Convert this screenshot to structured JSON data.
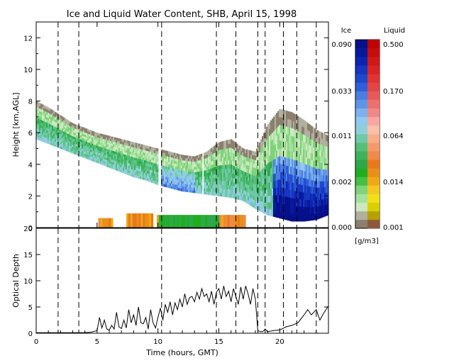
{
  "title": "Ice and Liquid Water Content, SHB, April 15, 1998",
  "colorbar": {
    "ice_label": "Ice",
    "liquid_label": "Liquid",
    "units": "[g/m3]",
    "ice_ticks": [
      "0.090",
      "0.033",
      "0.011",
      "0.002",
      "0.000"
    ],
    "liquid_ticks": [
      "0.500",
      "0.170",
      "0.064",
      "0.014",
      "0.001"
    ],
    "ice_colors": [
      "#8c7f6e",
      "#b0b0a0",
      "#cde8c0",
      "#a6e0a0",
      "#7fd37a",
      "#44c044",
      "#1fae1f",
      "#2ea84a",
      "#3cb35a",
      "#56bf7a",
      "#6fc9a8",
      "#8fd0d8",
      "#93c8ef",
      "#7eb2ef",
      "#5f95e8",
      "#4a7ee0",
      "#2f5ed8",
      "#1f48cc",
      "#1636c0",
      "#0c24b0",
      "#0818a0",
      "#06108a"
    ],
    "liquid_colors": [
      "#8c5a3a",
      "#b8a000",
      "#d8d000",
      "#f0e018",
      "#f4c820",
      "#f0a818",
      "#e89018",
      "#e8781c",
      "#f08a4a",
      "#f49a6a",
      "#f8ae8a",
      "#fac0a8",
      "#f8a8a0",
      "#f08888",
      "#ec7070",
      "#e85a5a",
      "#e44444",
      "#e03434",
      "#d82424",
      "#d01818",
      "#c80c0c",
      "#c00000"
    ]
  },
  "chart_data": [
    {
      "type": "heatmap",
      "title": "Ice and Liquid Water Content, SHB, April 15, 1998",
      "xlabel": "",
      "ylabel": "Height [km,AGL]",
      "xlim": [
        0,
        24
      ],
      "ylim": [
        0,
        13
      ],
      "yticks": [
        "0",
        "2",
        "4",
        "6",
        "8",
        "10",
        "12"
      ],
      "cloud_base_km": {
        "x": [
          0,
          1,
          2,
          3,
          4,
          5,
          6,
          7,
          8,
          9,
          10,
          11,
          12,
          13,
          14,
          15,
          16,
          17,
          18,
          19,
          20,
          21,
          22,
          23,
          24
        ],
        "y": [
          5.6,
          5.3,
          5.0,
          4.7,
          4.4,
          4.1,
          3.8,
          3.5,
          3.2,
          3.0,
          2.7,
          2.5,
          2.3,
          2.2,
          2.1,
          2.0,
          1.9,
          1.7,
          1.2,
          0.8,
          0.6,
          0.4,
          0.4,
          0.5,
          0.8
        ]
      },
      "cloud_top_km": {
        "x": [
          0,
          1,
          2,
          3,
          4,
          5,
          6,
          7,
          8,
          9,
          10,
          11,
          12,
          13,
          14,
          15,
          16,
          17,
          18,
          19,
          20,
          21,
          22,
          23,
          24
        ],
        "y": [
          8.0,
          7.6,
          7.1,
          6.6,
          6.3,
          6.0,
          5.8,
          5.6,
          5.4,
          5.2,
          5.0,
          4.8,
          4.6,
          4.5,
          4.8,
          5.4,
          5.6,
          5.0,
          4.8,
          6.5,
          7.5,
          7.3,
          6.8,
          6.2,
          5.8
        ]
      },
      "low_liquid_layers": [
        {
          "start_hour": 5.1,
          "end_hour": 6.3,
          "top_km": 0.6
        },
        {
          "start_hour": 7.4,
          "end_hour": 9.6,
          "top_km": 0.9
        },
        {
          "start_hour": 9.9,
          "end_hour": 17.2,
          "top_km": 0.8
        }
      ],
      "dashed_lines_hours": [
        1.8,
        3.5,
        10.3,
        14.8,
        16.4,
        18.2,
        18.8,
        20.3,
        21.4,
        23.0
      ]
    },
    {
      "type": "line",
      "title": "",
      "xlabel": "Time (hours, GMT)",
      "ylabel": "Optical Depth",
      "xlim": [
        0,
        24
      ],
      "ylim": [
        0,
        20
      ],
      "xticks": [
        "0",
        "5",
        "10",
        "15",
        "20"
      ],
      "yticks": [
        "0",
        "5",
        "10",
        "15",
        "20"
      ],
      "dashed_lines_hours": [
        1.8,
        3.5,
        10.3,
        14.8,
        16.4,
        18.2,
        18.8,
        20.3,
        21.4,
        23.0
      ],
      "series": [
        {
          "x": [
            0.0,
            1.0,
            2.0,
            3.0,
            4.0,
            4.5,
            5.0,
            5.2,
            5.4,
            5.6,
            5.8,
            6.0,
            6.2,
            6.4,
            6.6,
            6.8,
            7.0,
            7.2,
            7.4,
            7.6,
            7.8,
            8.0,
            8.2,
            8.4,
            8.6,
            8.8,
            9.0,
            9.2,
            9.4,
            9.6,
            9.8,
            10.0,
            10.2,
            10.4,
            10.6,
            10.8,
            11.0,
            11.2,
            11.4,
            11.6,
            11.8,
            12.0,
            12.2,
            12.4,
            12.6,
            12.8,
            13.0,
            13.2,
            13.4,
            13.6,
            13.8,
            14.0,
            14.2,
            14.4,
            14.6,
            14.8,
            15.0,
            15.2,
            15.4,
            15.6,
            15.8,
            16.0,
            16.2,
            16.4,
            16.6,
            16.8,
            17.0,
            17.2,
            17.4,
            17.6,
            17.8,
            18.0,
            18.2,
            18.4,
            18.6,
            18.8,
            19.0,
            19.5,
            20.0,
            20.5,
            21.0,
            21.5,
            22.0,
            22.3,
            22.6,
            23.0,
            23.3,
            23.6,
            24.0
          ],
          "y": [
            0.1,
            0.1,
            0.1,
            0.1,
            0.1,
            0.2,
            0.5,
            3.0,
            1.0,
            2.5,
            0.8,
            0.6,
            1.5,
            0.8,
            4.0,
            1.2,
            0.9,
            2.5,
            1.0,
            4.5,
            2.0,
            3.5,
            1.5,
            5.0,
            2.0,
            1.8,
            3.0,
            0.8,
            4.5,
            2.0,
            1.0,
            3.0,
            4.8,
            2.5,
            5.5,
            4.0,
            6.0,
            3.5,
            5.8,
            4.5,
            6.5,
            5.0,
            7.5,
            5.5,
            6.8,
            7.0,
            6.0,
            7.8,
            6.5,
            8.5,
            7.0,
            7.5,
            6.0,
            8.0,
            5.5,
            7.8,
            8.5,
            6.5,
            9.0,
            7.0,
            8.0,
            6.0,
            8.5,
            7.0,
            5.5,
            8.8,
            6.5,
            9.0,
            7.5,
            5.5,
            8.5,
            6.5,
            0.5,
            0.3,
            0.3,
            0.8,
            0.3,
            0.5,
            0.6,
            1.2,
            1.5,
            2.0,
            3.5,
            4.5,
            3.5,
            4.5,
            2.5,
            3.8,
            5.2
          ]
        }
      ]
    }
  ]
}
